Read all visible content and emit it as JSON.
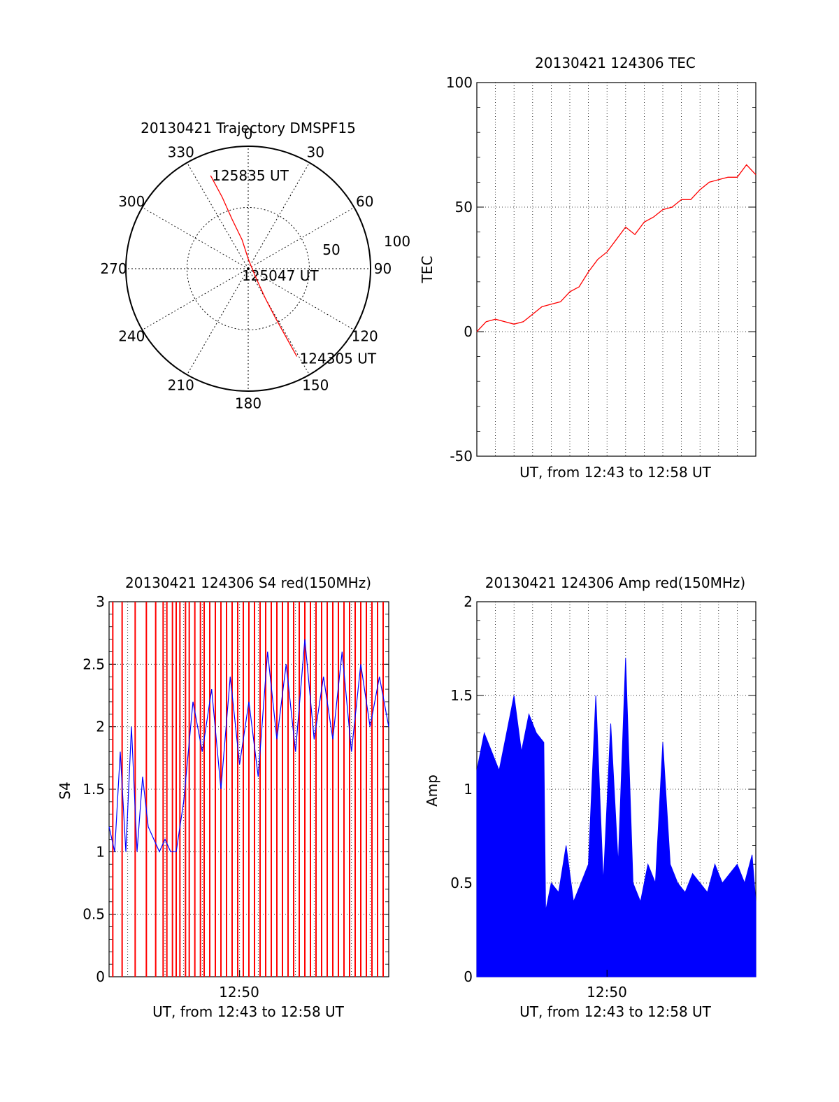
{
  "colors": {
    "red": "#ff0000",
    "blue": "#0000ff",
    "axis": "#000000",
    "grid": "#000000"
  },
  "chart_data": [
    {
      "id": "polar",
      "type": "polar-trajectory",
      "title": "20130421 Trajectory DMSPF15",
      "azimuth_ticks": [
        "0",
        "30",
        "60",
        "90",
        "120",
        "150",
        "180",
        "210",
        "240",
        "270",
        "300",
        "330"
      ],
      "radial_ticks": [
        "50",
        "100"
      ],
      "rlim": [
        0,
        100
      ],
      "grid": true,
      "series": [
        {
          "color": "#ff0000",
          "points": [
            {
              "az": 338,
              "r": 82
            },
            {
              "az": 340,
              "r": 62
            },
            {
              "az": 342,
              "r": 42
            },
            {
              "az": 348,
              "r": 24
            },
            {
              "az": 0,
              "r": 8
            },
            {
              "az": 140,
              "r": 10
            },
            {
              "az": 150,
              "r": 28
            },
            {
              "az": 151,
              "r": 46
            },
            {
              "az": 151,
              "r": 64
            },
            {
              "az": 151,
              "r": 82
            }
          ]
        }
      ],
      "annotations": [
        {
          "text": "125835 UT",
          "az": 338,
          "r": 82
        },
        {
          "text": "125047 UT",
          "az": 90,
          "r": 4
        },
        {
          "text": "124305 UT",
          "az": 151,
          "r": 82
        }
      ]
    },
    {
      "id": "tec",
      "type": "line",
      "title": "20130421 124306 TEC",
      "xlabel": "UT, from 12:43 to 12:58 UT",
      "ylabel": "TEC",
      "ylim": [
        -50,
        100
      ],
      "xlim": [
        0,
        15
      ],
      "yticks": [
        "-50",
        "0",
        "50",
        "100"
      ],
      "grid": true,
      "series": [
        {
          "color": "#ff0000",
          "x": [
            0,
            0.5,
            1,
            1.5,
            2,
            2.5,
            3,
            3.5,
            4,
            4.5,
            5,
            5.5,
            6,
            6.5,
            7,
            7.5,
            8,
            8.5,
            9,
            9.5,
            10,
            10.5,
            11,
            11.5,
            12,
            12.5,
            13,
            13.5,
            14,
            14.5,
            15
          ],
          "y": [
            0,
            4,
            5,
            4,
            3,
            4,
            7,
            10,
            11,
            12,
            16,
            18,
            24,
            29,
            32,
            37,
            42,
            39,
            44,
            46,
            49,
            50,
            53,
            53,
            57,
            60,
            61,
            62,
            62,
            67,
            63
          ]
        }
      ]
    },
    {
      "id": "s4",
      "type": "line",
      "title": "20130421 124306 S4 red(150MHz)",
      "xlabel": "UT, from 12:43 to 12:58 UT",
      "ylabel": "S4",
      "ylim": [
        0,
        3
      ],
      "xlim": [
        0,
        15
      ],
      "yticks": [
        "0",
        "0.5",
        "1",
        "1.5",
        "2",
        "2.5",
        "3"
      ],
      "xtick": {
        "label": "12:50",
        "x": 7
      },
      "grid": true,
      "series": [
        {
          "color": "#0000ff",
          "x": [
            0,
            0.3,
            0.6,
            0.9,
            1.2,
            1.5,
            1.8,
            2.1,
            2.4,
            2.7,
            3.0,
            3.3,
            3.6,
            4.0,
            4.5,
            5.0,
            5.5,
            6.0,
            6.5,
            7.0,
            7.5,
            8.0,
            8.5,
            9.0,
            9.5,
            10.0,
            10.5,
            11.0,
            11.5,
            12.0,
            12.5,
            13.0,
            13.5,
            14.0,
            14.5,
            15.0
          ],
          "y": [
            1.2,
            1.0,
            1.8,
            1.0,
            2.0,
            1.0,
            1.6,
            1.2,
            1.1,
            1.0,
            1.1,
            1.0,
            1.0,
            1.4,
            2.2,
            1.8,
            2.3,
            1.5,
            2.4,
            1.7,
            2.2,
            1.6,
            2.6,
            1.9,
            2.5,
            1.8,
            2.7,
            1.9,
            2.4,
            1.9,
            2.6,
            1.8,
            2.5,
            2.0,
            2.4,
            2.0
          ]
        },
        {
          "color": "#ff0000",
          "type": "spikes",
          "x": [
            0.2,
            0.7,
            1.4,
            2.0,
            2.5,
            2.9,
            3.1,
            3.4,
            3.6,
            3.8,
            4.1,
            4.3,
            4.6,
            4.9,
            5.1,
            5.4,
            5.7,
            6.0,
            6.3,
            6.6,
            6.9,
            7.2,
            7.5,
            7.8,
            8.1,
            8.4,
            8.7,
            9.0,
            9.3,
            9.6,
            9.9,
            10.2,
            10.5,
            10.8,
            11.1,
            11.4,
            11.7,
            12.0,
            12.3,
            12.6,
            12.9,
            13.2,
            13.5,
            13.8,
            14.1,
            14.4,
            14.7
          ],
          "y": [
            3,
            3,
            3,
            3,
            3,
            3,
            3,
            3,
            3,
            3,
            3,
            3,
            3,
            3,
            3,
            3,
            3,
            3,
            3,
            3,
            3,
            3,
            3,
            3,
            3,
            3,
            3,
            3,
            3,
            3,
            3,
            3,
            3,
            3,
            3,
            3,
            3,
            3,
            3,
            3,
            3,
            3,
            3,
            3,
            3,
            3,
            3
          ]
        }
      ]
    },
    {
      "id": "amp",
      "type": "line",
      "title": "20130421 124306 Amp red(150MHz)",
      "xlabel": "UT, from 12:43 to 12:58 UT",
      "ylabel": "Amp",
      "ylim": [
        0,
        2
      ],
      "xlim": [
        0,
        15
      ],
      "yticks": [
        "0",
        "0.5",
        "1",
        "1.5",
        "2"
      ],
      "xtick": {
        "label": "12:50",
        "x": 7
      },
      "grid": true,
      "series": [
        {
          "color": "#0000ff",
          "x": [
            0,
            0.4,
            0.8,
            1.2,
            1.6,
            2.0,
            2.4,
            2.8,
            3.2,
            3.6,
            3.7,
            4.0,
            4.4,
            4.8,
            5.2,
            5.6,
            6.0,
            6.4,
            6.8,
            7.2,
            7.6,
            8.0,
            8.4,
            8.8,
            9.2,
            9.6,
            10.0,
            10.4,
            10.8,
            11.2,
            11.6,
            12.0,
            12.4,
            12.8,
            13.2,
            13.6,
            14.0,
            14.4,
            14.8,
            15.0
          ],
          "y": [
            1.1,
            1.3,
            1.2,
            1.1,
            1.3,
            1.5,
            1.2,
            1.4,
            1.3,
            1.25,
            0.35,
            0.5,
            0.45,
            0.7,
            0.4,
            0.5,
            0.6,
            1.5,
            0.5,
            1.35,
            0.6,
            1.7,
            0.5,
            0.4,
            0.6,
            0.5,
            1.25,
            0.6,
            0.5,
            0.45,
            0.55,
            0.5,
            0.45,
            0.6,
            0.5,
            0.55,
            0.6,
            0.5,
            0.65,
            0.4
          ]
        }
      ]
    }
  ]
}
